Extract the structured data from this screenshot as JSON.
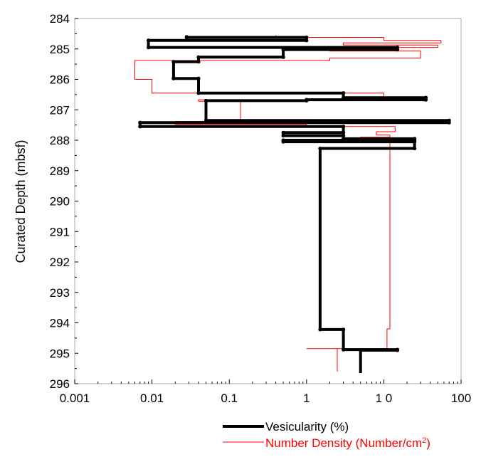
{
  "chart_data": {
    "type": "line",
    "title": "",
    "xlabel": "",
    "ylabel": "Curated Depth (mbsf)",
    "x_scale": "log",
    "xlim": [
      0.001,
      100
    ],
    "ylim": [
      296,
      284
    ],
    "y_inverted": true,
    "grid": false,
    "legend_position": "bottom-right",
    "x_tick_labels": [
      "0.001",
      "0.01",
      "0.1",
      "1",
      "1 0",
      "100"
    ],
    "y_tick_labels": [
      "284",
      "285",
      "286",
      "287",
      "288",
      "289",
      "290",
      "291",
      "292",
      "293",
      "294",
      "295",
      "296"
    ],
    "legend": {
      "vesicularity_label": "Vesicularity (%)",
      "density_label_prefix": "Number Density (Number/cm",
      "density_label_sup": "2",
      "density_label_suffix": ")"
    },
    "series": [
      {
        "name": "Vesicularity (%)",
        "color": "#000000",
        "points": [
          [
            0.028,
            284.55
          ],
          [
            0.028,
            284.62
          ],
          [
            1.0,
            284.62
          ],
          [
            1.0,
            284.72
          ],
          [
            0.009,
            284.72
          ],
          [
            0.009,
            284.95
          ],
          [
            15,
            284.95
          ],
          [
            15,
            285.02
          ],
          [
            0.5,
            285.02
          ],
          [
            0.5,
            285.27
          ],
          [
            0.04,
            285.27
          ],
          [
            0.04,
            285.42
          ],
          [
            0.019,
            285.42
          ],
          [
            0.019,
            285.97
          ],
          [
            0.04,
            285.97
          ],
          [
            0.04,
            286.45
          ],
          [
            3,
            286.45
          ],
          [
            3,
            286.6
          ],
          [
            35,
            286.6
          ],
          [
            35,
            286.67
          ],
          [
            1,
            286.67
          ],
          [
            1,
            286.7
          ],
          [
            0.05,
            286.7
          ],
          [
            0.05,
            287.35
          ],
          [
            70,
            287.35
          ],
          [
            70,
            287.42
          ],
          [
            0.007,
            287.42
          ],
          [
            0.007,
            287.55
          ],
          [
            3,
            287.55
          ],
          [
            3,
            287.75
          ],
          [
            0.5,
            287.75
          ],
          [
            0.5,
            287.85
          ],
          [
            3,
            287.85
          ],
          [
            3,
            287.95
          ],
          [
            25,
            287.95
          ],
          [
            25,
            288.0
          ],
          [
            0.5,
            288.0
          ],
          [
            0.5,
            288.05
          ],
          [
            25,
            288.05
          ],
          [
            25,
            288.27
          ],
          [
            1.5,
            288.27
          ],
          [
            1.5,
            294.22
          ],
          [
            3,
            294.22
          ],
          [
            3,
            294.88
          ],
          [
            15,
            294.88
          ],
          [
            15,
            294.9
          ],
          [
            5,
            294.9
          ],
          [
            5,
            295.65
          ]
        ]
      },
      {
        "name": "Number Density (Number/cm2)",
        "color": "#ff0000",
        "points": [
          [
            0.4,
            284.55
          ],
          [
            0.4,
            284.62
          ],
          [
            10,
            284.62
          ],
          [
            10,
            284.72
          ],
          [
            55,
            284.72
          ],
          [
            55,
            284.8
          ],
          [
            3,
            284.8
          ],
          [
            3,
            284.87
          ],
          [
            50,
            284.87
          ],
          [
            50,
            284.95
          ],
          [
            2,
            284.95
          ],
          [
            2,
            285.07
          ],
          [
            30,
            285.07
          ],
          [
            30,
            285.3
          ],
          [
            2,
            285.3
          ],
          [
            2,
            285.38
          ],
          [
            0.006,
            285.38
          ],
          [
            0.006,
            286.0
          ],
          [
            0.01,
            286.0
          ],
          [
            0.01,
            286.45
          ],
          [
            10,
            286.45
          ],
          [
            10,
            286.58
          ],
          [
            12,
            286.58
          ],
          [
            12,
            286.67
          ],
          [
            0.04,
            286.67
          ],
          [
            0.04,
            286.72
          ],
          [
            0.14,
            286.72
          ],
          [
            0.14,
            287.38
          ],
          [
            0.02,
            287.38
          ],
          [
            0.02,
            287.48
          ],
          [
            1,
            287.48
          ],
          [
            1,
            287.55
          ],
          [
            14,
            287.55
          ],
          [
            14,
            287.72
          ],
          [
            8,
            287.72
          ],
          [
            8,
            287.83
          ],
          [
            12,
            287.83
          ],
          [
            12,
            287.9
          ],
          [
            5,
            287.9
          ],
          [
            5,
            288.02
          ],
          [
            12,
            288.02
          ],
          [
            12,
            294.2
          ],
          [
            11,
            294.2
          ],
          [
            11,
            294.85
          ],
          [
            1,
            294.85
          ],
          [
            2.5,
            294.85
          ],
          [
            2.5,
            295.6
          ]
        ]
      }
    ]
  }
}
